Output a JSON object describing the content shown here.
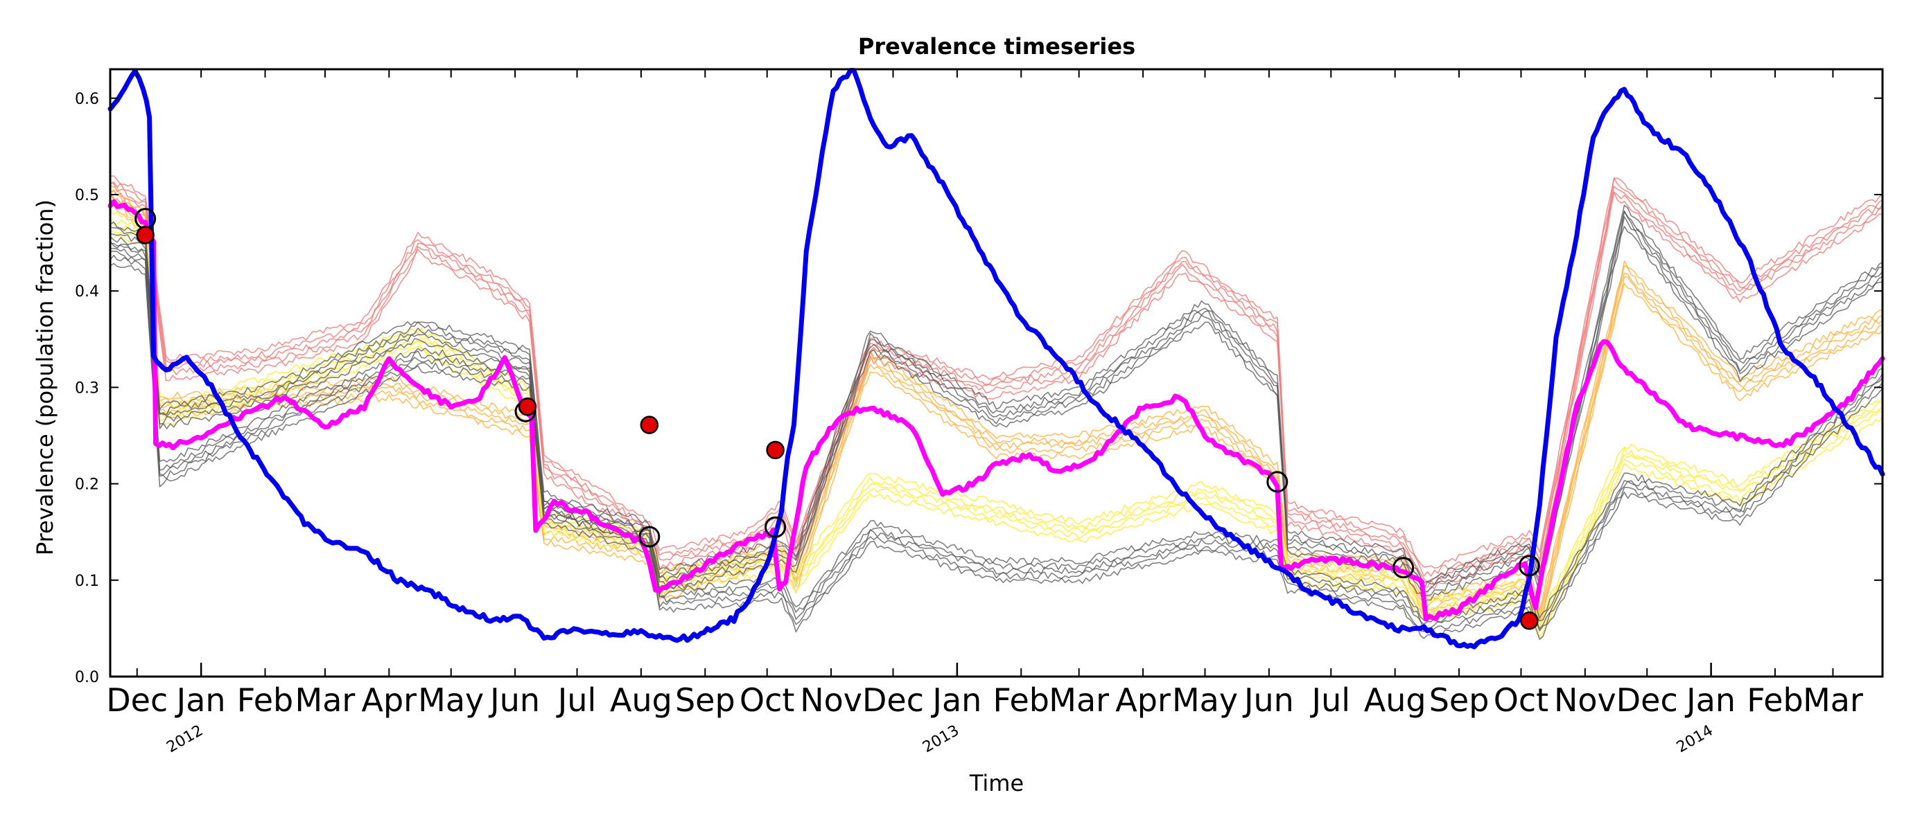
{
  "chart_data": {
    "type": "line",
    "title": "Prevalence timeseries",
    "xlabel": "Time",
    "ylabel": "Prevalence (population fraction)",
    "ylim": [
      0.0,
      0.63
    ],
    "yticks": [
      "0.0",
      "0.1",
      "0.2",
      "0.3",
      "0.4",
      "0.5",
      "0.6"
    ],
    "xlim": [
      "2011-11-18",
      "2014-03-25"
    ],
    "month_ticks": [
      {
        "date": "2011-12-01",
        "label": "Dec"
      },
      {
        "date": "2012-01-01",
        "label": "Jan"
      },
      {
        "date": "2012-02-01",
        "label": "Feb"
      },
      {
        "date": "2012-03-01",
        "label": "Mar"
      },
      {
        "date": "2012-04-01",
        "label": "Apr"
      },
      {
        "date": "2012-05-01",
        "label": "May"
      },
      {
        "date": "2012-06-01",
        "label": "Jun"
      },
      {
        "date": "2012-07-01",
        "label": "Jul"
      },
      {
        "date": "2012-08-01",
        "label": "Aug"
      },
      {
        "date": "2012-09-01",
        "label": "Sep"
      },
      {
        "date": "2012-10-01",
        "label": "Oct"
      },
      {
        "date": "2012-11-01",
        "label": "Nov"
      },
      {
        "date": "2012-12-01",
        "label": "Dec"
      },
      {
        "date": "2013-01-01",
        "label": "Jan"
      },
      {
        "date": "2013-02-01",
        "label": "Feb"
      },
      {
        "date": "2013-03-01",
        "label": "Mar"
      },
      {
        "date": "2013-04-01",
        "label": "Apr"
      },
      {
        "date": "2013-05-01",
        "label": "May"
      },
      {
        "date": "2013-06-01",
        "label": "Jun"
      },
      {
        "date": "2013-07-01",
        "label": "Jul"
      },
      {
        "date": "2013-08-01",
        "label": "Aug"
      },
      {
        "date": "2013-09-01",
        "label": "Sep"
      },
      {
        "date": "2013-10-01",
        "label": "Oct"
      },
      {
        "date": "2013-11-01",
        "label": "Nov"
      },
      {
        "date": "2013-12-01",
        "label": "Dec"
      },
      {
        "date": "2014-01-01",
        "label": "Jan"
      },
      {
        "date": "2014-02-01",
        "label": "Feb"
      },
      {
        "date": "2014-03-01",
        "label": "Mar"
      }
    ],
    "year_ticks": [
      {
        "date": "2012-01-01",
        "label": "2012"
      },
      {
        "date": "2013-01-01",
        "label": "2013"
      },
      {
        "date": "2014-01-01",
        "label": "2014"
      }
    ],
    "grid": false,
    "legend": "none",
    "colors": {
      "blue": "#0000ee",
      "magenta": "#ff00ff",
      "observed_fill": "#e00000",
      "ensemble_red": "#f08080",
      "ensemble_orange": "#ffb040",
      "ensemble_yellow": "#ffee55",
      "ensemble_gray": "#555555"
    },
    "series": [
      {
        "role": "thick-blue",
        "x": [
          "2011-11-18",
          "2011-11-25",
          "2011-11-30",
          "2011-12-04",
          "2011-12-07",
          "2011-12-09",
          "2011-12-15",
          "2011-12-25",
          "2012-01-06",
          "2012-01-20",
          "2012-02-05",
          "2012-02-20",
          "2012-03-03",
          "2012-03-20",
          "2012-04-05",
          "2012-04-20",
          "2012-05-05",
          "2012-05-20",
          "2012-06-05",
          "2012-06-15",
          "2012-07-01",
          "2012-07-15",
          "2012-08-01",
          "2012-08-10",
          "2012-08-25",
          "2012-09-15",
          "2012-09-25",
          "2012-10-02",
          "2012-10-08",
          "2012-10-11",
          "2012-10-14",
          "2012-10-20",
          "2012-10-26",
          "2012-11-02",
          "2012-11-12",
          "2012-11-20",
          "2012-11-28",
          "2012-12-10",
          "2012-12-25",
          "2013-01-10",
          "2013-02-01",
          "2013-02-20",
          "2013-03-10",
          "2013-04-01",
          "2013-04-20",
          "2013-05-10",
          "2013-06-01",
          "2013-06-20",
          "2013-07-10",
          "2013-08-01",
          "2013-08-15",
          "2013-09-05",
          "2013-09-20",
          "2013-09-30",
          "2013-10-05",
          "2013-10-10",
          "2013-10-18",
          "2013-10-28",
          "2013-11-05",
          "2013-11-12",
          "2013-11-20",
          "2013-12-01",
          "2013-12-20",
          "2014-01-05",
          "2014-01-20",
          "2014-02-05",
          "2014-02-20",
          "2014-03-05",
          "2014-03-25"
        ],
        "y": [
          0.59,
          0.61,
          0.63,
          0.61,
          0.58,
          0.33,
          0.32,
          0.33,
          0.3,
          0.25,
          0.2,
          0.16,
          0.14,
          0.13,
          0.1,
          0.09,
          0.07,
          0.06,
          0.06,
          0.04,
          0.05,
          0.045,
          0.045,
          0.04,
          0.04,
          0.06,
          0.09,
          0.12,
          0.17,
          0.23,
          0.26,
          0.44,
          0.52,
          0.61,
          0.63,
          0.58,
          0.55,
          0.56,
          0.51,
          0.45,
          0.37,
          0.33,
          0.28,
          0.24,
          0.19,
          0.15,
          0.12,
          0.09,
          0.07,
          0.05,
          0.05,
          0.03,
          0.04,
          0.06,
          0.1,
          0.18,
          0.35,
          0.46,
          0.56,
          0.59,
          0.61,
          0.57,
          0.54,
          0.49,
          0.43,
          0.34,
          0.31,
          0.27,
          0.21
        ]
      },
      {
        "role": "thick-magenta",
        "x": [
          "2011-11-18",
          "2011-11-25",
          "2011-12-05",
          "2011-12-09",
          "2011-12-10",
          "2011-12-20",
          "2012-01-01",
          "2012-01-20",
          "2012-02-10",
          "2012-03-01",
          "2012-03-20",
          "2012-04-01",
          "2012-04-15",
          "2012-05-01",
          "2012-05-15",
          "2012-05-27",
          "2012-06-05",
          "2012-06-09",
          "2012-06-11",
          "2012-06-20",
          "2012-07-05",
          "2012-07-20",
          "2012-08-01",
          "2012-08-05",
          "2012-08-08",
          "2012-08-20",
          "2012-09-05",
          "2012-09-20",
          "2012-10-04",
          "2012-10-07",
          "2012-10-10",
          "2012-10-20",
          "2012-11-05",
          "2012-11-20",
          "2012-12-10",
          "2012-12-25",
          "2013-01-10",
          "2013-01-20",
          "2013-02-05",
          "2013-02-20",
          "2013-03-10",
          "2013-04-01",
          "2013-04-20",
          "2013-05-01",
          "2013-05-15",
          "2013-06-01",
          "2013-06-05",
          "2013-06-07",
          "2013-06-20",
          "2013-07-10",
          "2013-08-05",
          "2013-08-14",
          "2013-08-16",
          "2013-09-01",
          "2013-09-20",
          "2013-10-03",
          "2013-10-08",
          "2013-10-15",
          "2013-10-28",
          "2013-11-10",
          "2013-11-20",
          "2013-12-01",
          "2013-12-20",
          "2014-01-10",
          "2014-02-05",
          "2014-02-20",
          "2014-03-10",
          "2014-03-25"
        ],
        "y": [
          0.49,
          0.49,
          0.47,
          0.45,
          0.24,
          0.24,
          0.25,
          0.27,
          0.29,
          0.26,
          0.28,
          0.33,
          0.3,
          0.28,
          0.29,
          0.33,
          0.28,
          0.27,
          0.15,
          0.18,
          0.17,
          0.15,
          0.14,
          0.12,
          0.09,
          0.1,
          0.12,
          0.14,
          0.15,
          0.09,
          0.1,
          0.22,
          0.27,
          0.28,
          0.26,
          0.19,
          0.2,
          0.22,
          0.23,
          0.21,
          0.23,
          0.28,
          0.29,
          0.25,
          0.23,
          0.21,
          0.2,
          0.11,
          0.12,
          0.12,
          0.11,
          0.1,
          0.06,
          0.07,
          0.1,
          0.12,
          0.07,
          0.15,
          0.28,
          0.35,
          0.32,
          0.3,
          0.26,
          0.25,
          0.24,
          0.26,
          0.29,
          0.33
        ]
      },
      {
        "role": "ensemble-red",
        "x": [
          "2011-11-18",
          "2011-12-05",
          "2011-12-15",
          "2012-02-01",
          "2012-03-20",
          "2012-04-15",
          "2012-05-20",
          "2012-06-08",
          "2012-06-15",
          "2012-07-15",
          "2012-08-05",
          "2012-08-10",
          "2012-09-20",
          "2012-10-08",
          "2012-10-15",
          "2012-11-20",
          "2013-01-15",
          "2013-03-01",
          "2013-04-20",
          "2013-06-05",
          "2013-06-10",
          "2013-08-05",
          "2013-08-15",
          "2013-10-05",
          "2013-10-10",
          "2013-11-15",
          "2014-01-15",
          "2014-03-25"
        ],
        "y": [
          0.51,
          0.49,
          0.32,
          0.33,
          0.36,
          0.45,
          0.41,
          0.38,
          0.22,
          0.18,
          0.15,
          0.12,
          0.14,
          0.17,
          0.13,
          0.34,
          0.3,
          0.32,
          0.43,
          0.36,
          0.17,
          0.14,
          0.1,
          0.14,
          0.12,
          0.51,
          0.4,
          0.49
        ]
      },
      {
        "role": "ensemble-orange",
        "x": [
          "2011-11-18",
          "2011-12-05",
          "2011-12-12",
          "2012-02-01",
          "2012-04-01",
          "2012-06-08",
          "2012-06-15",
          "2012-08-05",
          "2012-08-10",
          "2012-10-08",
          "2012-10-15",
          "2012-11-20",
          "2013-01-20",
          "2013-03-01",
          "2013-05-01",
          "2013-06-05",
          "2013-06-10",
          "2013-08-05",
          "2013-08-15",
          "2013-10-05",
          "2013-10-10",
          "2013-11-20",
          "2014-01-15",
          "2014-03-25"
        ],
        "y": [
          0.5,
          0.47,
          0.28,
          0.29,
          0.3,
          0.26,
          0.15,
          0.13,
          0.09,
          0.13,
          0.1,
          0.33,
          0.24,
          0.24,
          0.27,
          0.21,
          0.12,
          0.11,
          0.07,
          0.1,
          0.06,
          0.42,
          0.3,
          0.37
        ]
      },
      {
        "role": "ensemble-yellow",
        "x": [
          "2011-11-18",
          "2011-12-05",
          "2011-12-12",
          "2012-02-01",
          "2012-04-15",
          "2012-06-08",
          "2012-06-15",
          "2012-08-05",
          "2012-08-10",
          "2012-10-08",
          "2012-10-15",
          "2012-11-20",
          "2013-01-20",
          "2013-03-01",
          "2013-05-01",
          "2013-06-05",
          "2013-06-10",
          "2013-08-05",
          "2013-08-15",
          "2013-10-05",
          "2013-10-10",
          "2013-11-20",
          "2014-01-15",
          "2014-03-25"
        ],
        "y": [
          0.47,
          0.46,
          0.27,
          0.3,
          0.35,
          0.29,
          0.16,
          0.14,
          0.1,
          0.12,
          0.1,
          0.2,
          0.17,
          0.15,
          0.19,
          0.16,
          0.11,
          0.1,
          0.07,
          0.09,
          0.05,
          0.23,
          0.19,
          0.28
        ]
      },
      {
        "role": "ensemble-gray",
        "x": [
          "2011-11-18",
          "2011-12-05",
          "2011-12-12",
          "2012-02-01",
          "2012-04-15",
          "2012-06-08",
          "2012-06-15",
          "2012-08-05",
          "2012-08-10",
          "2012-10-08",
          "2012-10-15",
          "2012-11-20",
          "2013-01-20",
          "2013-03-01",
          "2013-05-01",
          "2013-06-05",
          "2013-06-10",
          "2013-08-05",
          "2013-08-15",
          "2013-10-05",
          "2013-10-10",
          "2013-11-20",
          "2014-01-15",
          "2014-03-25"
        ],
        "y": [
          0.44,
          0.43,
          0.21,
          0.26,
          0.33,
          0.31,
          0.17,
          0.14,
          0.08,
          0.09,
          0.06,
          0.15,
          0.11,
          0.11,
          0.14,
          0.13,
          0.1,
          0.08,
          0.05,
          0.08,
          0.05,
          0.2,
          0.17,
          0.31
        ]
      },
      {
        "role": "ensemble-gray",
        "x": [
          "2011-11-18",
          "2011-12-05",
          "2011-12-12",
          "2012-02-01",
          "2012-04-15",
          "2012-06-08",
          "2012-06-15",
          "2012-08-05",
          "2012-08-10",
          "2012-10-08",
          "2012-10-15",
          "2012-11-20",
          "2013-01-20",
          "2013-03-01",
          "2013-05-01",
          "2013-06-05",
          "2013-06-10",
          "2013-08-05",
          "2013-08-15",
          "2013-10-05",
          "2013-10-10",
          "2013-11-20",
          "2014-01-15",
          "2014-03-25"
        ],
        "y": [
          0.46,
          0.45,
          0.27,
          0.29,
          0.36,
          0.33,
          0.18,
          0.15,
          0.1,
          0.13,
          0.12,
          0.35,
          0.27,
          0.29,
          0.38,
          0.3,
          0.14,
          0.12,
          0.09,
          0.13,
          0.1,
          0.48,
          0.32,
          0.42
        ]
      }
    ],
    "observed_points": [
      {
        "x": "2011-12-05",
        "y": 0.458
      },
      {
        "x": "2012-06-07",
        "y": 0.28
      },
      {
        "x": "2012-08-05",
        "y": 0.261
      },
      {
        "x": "2012-10-05",
        "y": 0.235
      },
      {
        "x": "2013-10-05",
        "y": 0.058
      }
    ],
    "open_markers": [
      {
        "x": "2011-12-05",
        "y": 0.475
      },
      {
        "x": "2012-06-06",
        "y": 0.275
      },
      {
        "x": "2012-08-05",
        "y": 0.145
      },
      {
        "x": "2012-10-05",
        "y": 0.155
      },
      {
        "x": "2013-06-05",
        "y": 0.202
      },
      {
        "x": "2013-08-05",
        "y": 0.113
      },
      {
        "x": "2013-10-05",
        "y": 0.115
      }
    ]
  }
}
